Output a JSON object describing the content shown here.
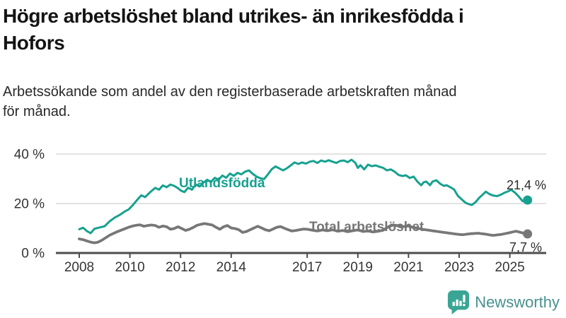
{
  "header": {
    "title_line1": "Högre arbetslöshet bland utrikes- än inrikesfödda i",
    "title_line2": "Hofors",
    "subtitle_line1": "Arbetssökande som andel av den registerbaserade arbetskraften månad",
    "subtitle_line2": "för månad."
  },
  "chart_data": {
    "type": "line",
    "title": "Högre arbetslöshet bland utrikes- än inrikesfödda i Hofors",
    "subtitle": "Arbetssökande som andel av den registerbaserade arbetskraften månad för månad.",
    "unit": "%",
    "grid": "horizontal",
    "legend_position": "inline-labels-on-lines",
    "xlim": [
      2008,
      2025.7
    ],
    "ylim": [
      0,
      44
    ],
    "x_axis": {
      "ticks": [
        {
          "label": "2008",
          "year": 2008
        },
        {
          "label": "2010",
          "year": 2010
        },
        {
          "label": "2012",
          "year": 2012
        },
        {
          "label": "2014",
          "year": 2014
        },
        {
          "label": "2017",
          "year": 2017
        },
        {
          "label": "2019",
          "year": 2019
        },
        {
          "label": "2021",
          "year": 2021
        },
        {
          "label": "2023",
          "year": 2023
        },
        {
          "label": "2025",
          "year": 2025
        }
      ]
    },
    "y_axis": {
      "ticks": [
        {
          "label": "0 %",
          "value": 0
        },
        {
          "label": "20 %",
          "value": 20
        },
        {
          "label": "40 %",
          "value": 40
        }
      ]
    },
    "series": [
      {
        "name": "Total arbetslöshet",
        "color": "#777777",
        "end_label": "7,7 %",
        "end_value": 7.7,
        "points": [
          [
            2008.0,
            5.7
          ],
          [
            2008.15,
            5.4
          ],
          [
            2008.3,
            4.9
          ],
          [
            2008.45,
            4.4
          ],
          [
            2008.6,
            4.1
          ],
          [
            2008.75,
            4.4
          ],
          [
            2008.9,
            5.2
          ],
          [
            2009.05,
            6.2
          ],
          [
            2009.2,
            7.2
          ],
          [
            2009.35,
            7.9
          ],
          [
            2009.5,
            8.6
          ],
          [
            2009.65,
            9.2
          ],
          [
            2009.8,
            9.8
          ],
          [
            2009.95,
            10.4
          ],
          [
            2010.1,
            10.9
          ],
          [
            2010.25,
            11.2
          ],
          [
            2010.4,
            11.4
          ],
          [
            2010.55,
            10.8
          ],
          [
            2010.7,
            11.1
          ],
          [
            2010.85,
            11.3
          ],
          [
            2011.0,
            11.1
          ],
          [
            2011.15,
            10.4
          ],
          [
            2011.3,
            10.9
          ],
          [
            2011.45,
            10.6
          ],
          [
            2011.6,
            9.6
          ],
          [
            2011.75,
            9.9
          ],
          [
            2011.9,
            10.6
          ],
          [
            2012.05,
            9.9
          ],
          [
            2012.2,
            9.1
          ],
          [
            2012.35,
            9.6
          ],
          [
            2012.5,
            10.3
          ],
          [
            2012.65,
            11.2
          ],
          [
            2012.8,
            11.6
          ],
          [
            2012.95,
            11.9
          ],
          [
            2013.1,
            11.6
          ],
          [
            2013.25,
            11.3
          ],
          [
            2013.4,
            10.4
          ],
          [
            2013.55,
            9.6
          ],
          [
            2013.7,
            10.6
          ],
          [
            2013.85,
            11.1
          ],
          [
            2014.0,
            10.1
          ],
          [
            2014.15,
            9.9
          ],
          [
            2014.3,
            9.4
          ],
          [
            2014.45,
            8.3
          ],
          [
            2014.6,
            8.7
          ],
          [
            2014.75,
            9.4
          ],
          [
            2014.9,
            10.1
          ],
          [
            2015.05,
            10.8
          ],
          [
            2015.2,
            10.1
          ],
          [
            2015.35,
            9.4
          ],
          [
            2015.5,
            9.0
          ],
          [
            2015.65,
            9.7
          ],
          [
            2015.8,
            10.4
          ],
          [
            2015.95,
            10.7
          ],
          [
            2016.1,
            10.0
          ],
          [
            2016.25,
            9.4
          ],
          [
            2016.4,
            8.9
          ],
          [
            2016.55,
            9.1
          ],
          [
            2016.7,
            9.4
          ],
          [
            2016.85,
            9.7
          ],
          [
            2017.0,
            9.6
          ],
          [
            2017.2,
            9.2
          ],
          [
            2017.4,
            8.9
          ],
          [
            2017.6,
            9.3
          ],
          [
            2017.8,
            9.0
          ],
          [
            2018.0,
            9.4
          ],
          [
            2018.2,
            8.8
          ],
          [
            2018.4,
            9.1
          ],
          [
            2018.6,
            8.6
          ],
          [
            2018.8,
            9.0
          ],
          [
            2019.0,
            9.3
          ],
          [
            2019.2,
            8.7
          ],
          [
            2019.4,
            8.9
          ],
          [
            2019.6,
            8.5
          ],
          [
            2019.8,
            8.8
          ],
          [
            2020.0,
            9.2
          ],
          [
            2020.2,
            10.6
          ],
          [
            2020.4,
            11.3
          ],
          [
            2020.6,
            11.0
          ],
          [
            2020.8,
            10.7
          ],
          [
            2021.0,
            10.9
          ],
          [
            2021.2,
            10.3
          ],
          [
            2021.4,
            9.9
          ],
          [
            2021.6,
            9.5
          ],
          [
            2021.8,
            9.2
          ],
          [
            2022.0,
            8.9
          ],
          [
            2022.2,
            8.6
          ],
          [
            2022.4,
            8.3
          ],
          [
            2022.55,
            8.1
          ],
          [
            2022.7,
            7.9
          ],
          [
            2022.85,
            7.7
          ],
          [
            2023.0,
            7.5
          ],
          [
            2023.15,
            7.4
          ],
          [
            2023.3,
            7.6
          ],
          [
            2023.45,
            7.8
          ],
          [
            2023.6,
            7.9
          ],
          [
            2023.75,
            8.0
          ],
          [
            2023.9,
            7.8
          ],
          [
            2024.05,
            7.6
          ],
          [
            2024.2,
            7.3
          ],
          [
            2024.35,
            7.1
          ],
          [
            2024.5,
            7.3
          ],
          [
            2024.65,
            7.5
          ],
          [
            2024.8,
            7.8
          ],
          [
            2024.95,
            8.1
          ],
          [
            2025.1,
            8.5
          ],
          [
            2025.25,
            8.8
          ],
          [
            2025.4,
            8.4
          ],
          [
            2025.55,
            8.0
          ],
          [
            2025.7,
            7.7
          ]
        ]
      },
      {
        "name": "Utlandsfödda",
        "color": "#16a190",
        "end_label": "21,4 %",
        "end_value": 21.4,
        "points": [
          [
            2008.0,
            9.6
          ],
          [
            2008.15,
            10.2
          ],
          [
            2008.3,
            8.9
          ],
          [
            2008.45,
            8.0
          ],
          [
            2008.6,
            9.8
          ],
          [
            2008.8,
            10.3
          ],
          [
            2009.0,
            10.8
          ],
          [
            2009.2,
            12.8
          ],
          [
            2009.4,
            14.3
          ],
          [
            2009.6,
            15.4
          ],
          [
            2009.8,
            16.8
          ],
          [
            2009.95,
            17.6
          ],
          [
            2010.1,
            19.2
          ],
          [
            2010.3,
            21.6
          ],
          [
            2010.45,
            23.3
          ],
          [
            2010.6,
            22.6
          ],
          [
            2010.8,
            24.6
          ],
          [
            2011.0,
            26.3
          ],
          [
            2011.15,
            25.6
          ],
          [
            2011.3,
            27.3
          ],
          [
            2011.45,
            26.6
          ],
          [
            2011.6,
            27.7
          ],
          [
            2011.75,
            27.1
          ],
          [
            2011.9,
            26.2
          ],
          [
            2012.0,
            25.3
          ],
          [
            2012.15,
            24.6
          ],
          [
            2012.3,
            26.4
          ],
          [
            2012.45,
            25.6
          ],
          [
            2012.6,
            27.7
          ],
          [
            2012.75,
            26.9
          ],
          [
            2012.9,
            28.4
          ],
          [
            2013.05,
            29.6
          ],
          [
            2013.2,
            28.7
          ],
          [
            2013.35,
            30.4
          ],
          [
            2013.5,
            29.6
          ],
          [
            2013.65,
            31.3
          ],
          [
            2013.8,
            30.4
          ],
          [
            2013.95,
            32.1
          ],
          [
            2014.1,
            31.2
          ],
          [
            2014.25,
            32.4
          ],
          [
            2014.4,
            31.8
          ],
          [
            2014.55,
            32.9
          ],
          [
            2014.7,
            33.4
          ],
          [
            2014.85,
            32.0
          ],
          [
            2015.0,
            30.9
          ],
          [
            2015.15,
            30.2
          ],
          [
            2015.3,
            29.9
          ],
          [
            2015.45,
            31.8
          ],
          [
            2015.6,
            33.9
          ],
          [
            2015.75,
            35.0
          ],
          [
            2015.9,
            34.2
          ],
          [
            2016.05,
            33.4
          ],
          [
            2016.2,
            34.3
          ],
          [
            2016.35,
            35.4
          ],
          [
            2016.5,
            36.6
          ],
          [
            2016.65,
            36.0
          ],
          [
            2016.8,
            36.6
          ],
          [
            2016.95,
            36.1
          ],
          [
            2017.1,
            36.9
          ],
          [
            2017.25,
            37.2
          ],
          [
            2017.4,
            36.4
          ],
          [
            2017.55,
            37.4
          ],
          [
            2017.7,
            36.9
          ],
          [
            2017.85,
            37.5
          ],
          [
            2018.0,
            36.9
          ],
          [
            2018.15,
            36.4
          ],
          [
            2018.3,
            37.2
          ],
          [
            2018.45,
            37.4
          ],
          [
            2018.6,
            36.7
          ],
          [
            2018.75,
            37.7
          ],
          [
            2018.9,
            36.5
          ],
          [
            2019.0,
            34.4
          ],
          [
            2019.1,
            35.5
          ],
          [
            2019.25,
            33.8
          ],
          [
            2019.4,
            35.7
          ],
          [
            2019.55,
            35.1
          ],
          [
            2019.7,
            35.4
          ],
          [
            2019.85,
            34.9
          ],
          [
            2020.0,
            34.4
          ],
          [
            2020.15,
            33.4
          ],
          [
            2020.3,
            33.8
          ],
          [
            2020.45,
            32.9
          ],
          [
            2020.6,
            31.6
          ],
          [
            2020.75,
            31.1
          ],
          [
            2020.9,
            31.4
          ],
          [
            2021.05,
            30.3
          ],
          [
            2021.2,
            30.9
          ],
          [
            2021.35,
            28.9
          ],
          [
            2021.5,
            27.4
          ],
          [
            2021.6,
            28.6
          ],
          [
            2021.7,
            28.9
          ],
          [
            2021.85,
            27.4
          ],
          [
            2021.95,
            28.9
          ],
          [
            2022.1,
            29.4
          ],
          [
            2022.25,
            28.0
          ],
          [
            2022.4,
            27.1
          ],
          [
            2022.5,
            27.4
          ],
          [
            2022.65,
            26.6
          ],
          [
            2022.8,
            25.7
          ],
          [
            2022.95,
            23.1
          ],
          [
            2023.1,
            21.7
          ],
          [
            2023.25,
            20.3
          ],
          [
            2023.4,
            19.7
          ],
          [
            2023.5,
            19.4
          ],
          [
            2023.65,
            20.6
          ],
          [
            2023.8,
            22.4
          ],
          [
            2023.95,
            23.8
          ],
          [
            2024.05,
            24.8
          ],
          [
            2024.2,
            23.8
          ],
          [
            2024.35,
            23.2
          ],
          [
            2024.5,
            23.0
          ],
          [
            2024.65,
            23.6
          ],
          [
            2024.8,
            24.4
          ],
          [
            2024.95,
            25.0
          ],
          [
            2025.05,
            25.6
          ],
          [
            2025.2,
            24.4
          ],
          [
            2025.35,
            22.9
          ],
          [
            2025.5,
            21.0
          ],
          [
            2025.6,
            20.8
          ],
          [
            2025.7,
            21.4
          ]
        ]
      }
    ]
  },
  "footer": {
    "brand": "Newsworthy"
  },
  "colors": {
    "accent_teal": "#16a190",
    "line_gray": "#777777",
    "axis": "#4d4d4d",
    "gridline": "#d9d9d9",
    "tick_label": "#333333",
    "brand_teal": "#3aa594",
    "brand_text": "#47918e"
  }
}
